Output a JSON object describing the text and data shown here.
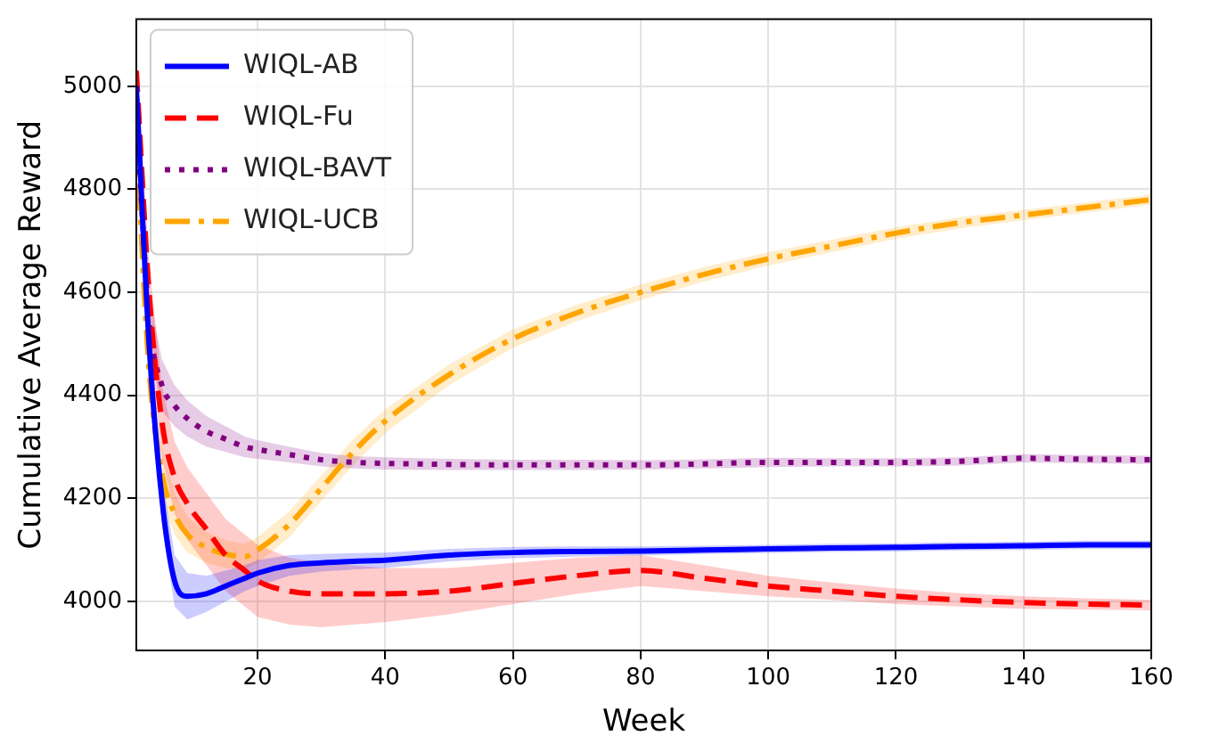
{
  "chart_data": {
    "type": "line",
    "xlabel": "Week",
    "ylabel": "Cumulative Average Reward",
    "x": [
      1,
      3,
      5,
      7,
      9,
      12,
      15,
      18,
      20,
      25,
      30,
      35,
      40,
      50,
      60,
      70,
      80,
      90,
      100,
      110,
      120,
      130,
      140,
      150,
      160
    ],
    "xlim": [
      1,
      160
    ],
    "xticks": [
      20,
      40,
      60,
      80,
      100,
      120,
      140,
      160
    ],
    "ylim": [
      3905,
      5130
    ],
    "yticks": [
      4000,
      4200,
      4400,
      4600,
      4800,
      5000
    ],
    "grid": true,
    "legend": "top left",
    "series": [
      {
        "name": "WIQL-AB",
        "color": "#0000ff",
        "line_style": "solid",
        "values": [
          5000,
          4500,
          4200,
          4040,
          4010,
          4015,
          4030,
          4045,
          4055,
          4070,
          4075,
          4078,
          4080,
          4090,
          4095,
          4097,
          4098,
          4100,
          4102,
          4104,
          4105,
          4107,
          4108,
          4110,
          4110
        ],
        "lower": [
          4960,
          4450,
          4150,
          3990,
          3965,
          3980,
          4000,
          4020,
          4030,
          4050,
          4058,
          4062,
          4065,
          4078,
          4084,
          4087,
          4089,
          4092,
          4094,
          4096,
          4097,
          4099,
          4100,
          4102,
          4102
        ],
        "upper": [
          5040,
          4550,
          4250,
          4090,
          4055,
          4050,
          4060,
          4070,
          4080,
          4090,
          4092,
          4094,
          4095,
          4102,
          4106,
          4107,
          4107,
          4108,
          4110,
          4112,
          4113,
          4115,
          4116,
          4118,
          4118
        ]
      },
      {
        "name": "WIQL-Fu",
        "color": "#ff0000",
        "line_style": "dashed",
        "values": [
          5030,
          4600,
          4350,
          4240,
          4190,
          4140,
          4090,
          4060,
          4040,
          4020,
          4015,
          4015,
          4015,
          4020,
          4035,
          4050,
          4060,
          4045,
          4030,
          4020,
          4010,
          4003,
          3998,
          3995,
          3993
        ],
        "lower": [
          4990,
          4540,
          4280,
          4170,
          4120,
          4070,
          4020,
          3990,
          3970,
          3955,
          3950,
          3955,
          3960,
          3975,
          3995,
          4015,
          4030,
          4020,
          4010,
          4003,
          3995,
          3990,
          3986,
          3984,
          3983
        ],
        "upper": [
          5070,
          4660,
          4420,
          4310,
          4260,
          4210,
          4160,
          4130,
          4110,
          4085,
          4075,
          4070,
          4065,
          4065,
          4075,
          4085,
          4090,
          4070,
          4050,
          4037,
          4025,
          4016,
          4010,
          4006,
          4003
        ]
      },
      {
        "name": "WIQL-BAVT",
        "color": "#800080",
        "line_style": "dotted",
        "values": [
          4950,
          4550,
          4420,
          4380,
          4355,
          4330,
          4315,
          4300,
          4295,
          4285,
          4275,
          4270,
          4268,
          4266,
          4265,
          4265,
          4265,
          4267,
          4270,
          4270,
          4270,
          4272,
          4278,
          4276,
          4275
        ],
        "lower": [
          4910,
          4500,
          4370,
          4340,
          4320,
          4300,
          4290,
          4280,
          4277,
          4270,
          4262,
          4258,
          4256,
          4255,
          4255,
          4255,
          4256,
          4258,
          4261,
          4262,
          4262,
          4264,
          4270,
          4268,
          4267
        ],
        "upper": [
          4990,
          4600,
          4470,
          4420,
          4390,
          4360,
          4340,
          4320,
          4313,
          4300,
          4288,
          4282,
          4280,
          4277,
          4275,
          4275,
          4274,
          4276,
          4279,
          4278,
          4278,
          4280,
          4286,
          4284,
          4283
        ]
      },
      {
        "name": "WIQL-UCB",
        "color": "#ffa500",
        "line_style": "dashdot",
        "values": [
          4900,
          4450,
          4250,
          4170,
          4130,
          4105,
          4092,
          4087,
          4100,
          4150,
          4220,
          4290,
          4350,
          4440,
          4510,
          4560,
          4600,
          4635,
          4665,
          4690,
          4715,
          4735,
          4750,
          4765,
          4780
        ],
        "lower": [
          4860,
          4400,
          4200,
          4130,
          4095,
          4075,
          4065,
          4062,
          4075,
          4125,
          4195,
          4265,
          4327,
          4420,
          4492,
          4544,
          4585,
          4621,
          4652,
          4678,
          4704,
          4724,
          4740,
          4755,
          4770
        ],
        "upper": [
          4940,
          4500,
          4300,
          4210,
          4165,
          4135,
          4119,
          4112,
          4125,
          4175,
          4245,
          4315,
          4373,
          4460,
          4528,
          4576,
          4615,
          4649,
          4678,
          4702,
          4726,
          4746,
          4760,
          4775,
          4790
        ]
      }
    ]
  }
}
